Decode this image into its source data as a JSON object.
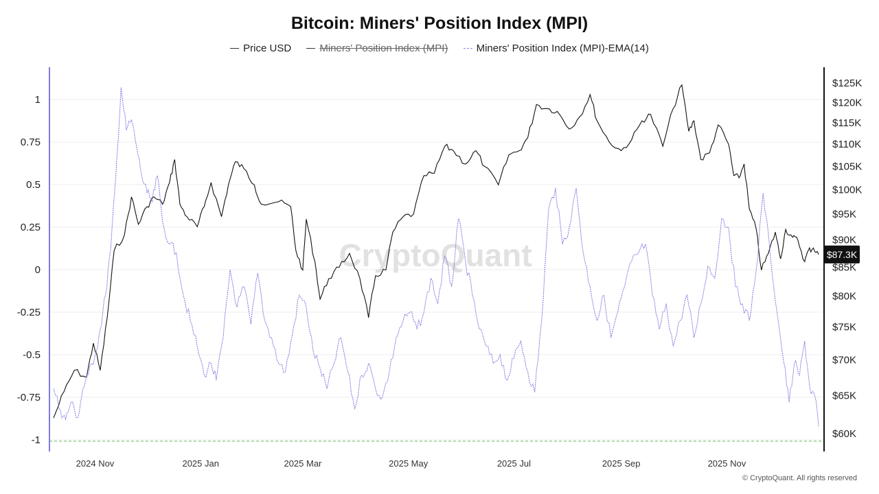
{
  "chart_data": {
    "type": "line",
    "title": "Bitcoin: Miners' Position Index (MPI)",
    "legend": [
      {
        "name": "Price USD",
        "hidden": false,
        "style": "solid"
      },
      {
        "name": "Miners' Position Index (MPI)",
        "hidden": true,
        "style": "solid"
      },
      {
        "name": "Miners' Position Index (MPI)-EMA(14)",
        "hidden": false,
        "style": "dashed"
      }
    ],
    "x_range": [
      "2024-10-08",
      "2025-12-24"
    ],
    "x_ticks": [
      {
        "date": "2024-11-01",
        "label": "2024 Nov"
      },
      {
        "date": "2025-01-01",
        "label": "2025 Jan"
      },
      {
        "date": "2025-03-01",
        "label": "2025 Mar"
      },
      {
        "date": "2025-05-01",
        "label": "2025 May"
      },
      {
        "date": "2025-07-01",
        "label": "2025 Jul"
      },
      {
        "date": "2025-09-01",
        "label": "2025 Sep"
      },
      {
        "date": "2025-11-01",
        "label": "2025 Nov"
      }
    ],
    "left_axis": {
      "ylim": [
        -1.05,
        1.12
      ],
      "ticks": [
        {
          "v": 1,
          "label": "1"
        },
        {
          "v": 0.75,
          "label": "0.75"
        },
        {
          "v": 0.5,
          "label": "0.5"
        },
        {
          "v": 0.25,
          "label": "0.25"
        },
        {
          "v": 0,
          "label": "0"
        },
        {
          "v": -0.25,
          "label": "-0.25"
        },
        {
          "v": -0.5,
          "label": "-0.5"
        },
        {
          "v": -0.75,
          "label": "-0.75"
        },
        {
          "v": -1,
          "label": "-1"
        }
      ]
    },
    "right_axis": {
      "scale": "log",
      "ticks": [
        {
          "v": 125000,
          "label": "$125K"
        },
        {
          "v": 120000,
          "label": "$120K"
        },
        {
          "v": 115000,
          "label": "$115K"
        },
        {
          "v": 110000,
          "label": "$110K"
        },
        {
          "v": 105000,
          "label": "$105K"
        },
        {
          "v": 100000,
          "label": "$100K"
        },
        {
          "v": 95000,
          "label": "$95K"
        },
        {
          "v": 90000,
          "label": "$90K"
        },
        {
          "v": 85000,
          "label": "$85K"
        },
        {
          "v": 80000,
          "label": "$80K"
        },
        {
          "v": 75000,
          "label": "$75K"
        },
        {
          "v": 70000,
          "label": "$70K"
        },
        {
          "v": 65000,
          "label": "$65K"
        },
        {
          "v": 60000,
          "label": "$60K"
        }
      ]
    },
    "reference_line": {
      "value": -1.0,
      "axis": "left",
      "style": "dashed",
      "color": "#5cb85c"
    },
    "current_price_label": "$87.3K",
    "series": [
      {
        "name": "Price USD",
        "axis": "right",
        "color": "#111111",
        "points": [
          [
            "2024-10-08",
            62000
          ],
          [
            "2024-10-14",
            65500
          ],
          [
            "2024-10-20",
            68500
          ],
          [
            "2024-10-27",
            67500
          ],
          [
            "2024-10-31",
            72500
          ],
          [
            "2024-11-04",
            68500
          ],
          [
            "2024-11-08",
            76500
          ],
          [
            "2024-11-12",
            88000
          ],
          [
            "2024-11-18",
            91000
          ],
          [
            "2024-11-22",
            98500
          ],
          [
            "2024-11-26",
            93000
          ],
          [
            "2024-12-01",
            96500
          ],
          [
            "2024-12-05",
            98500
          ],
          [
            "2024-12-10",
            97000
          ],
          [
            "2024-12-14",
            101500
          ],
          [
            "2024-12-17",
            106500
          ],
          [
            "2024-12-20",
            97000
          ],
          [
            "2024-12-24",
            94500
          ],
          [
            "2024-12-30",
            92500
          ],
          [
            "2025-01-03",
            96500
          ],
          [
            "2025-01-07",
            101500
          ],
          [
            "2025-01-13",
            94500
          ],
          [
            "2025-01-17",
            101000
          ],
          [
            "2025-01-21",
            106000
          ],
          [
            "2025-01-26",
            104500
          ],
          [
            "2025-02-01",
            101000
          ],
          [
            "2025-02-05",
            97000
          ],
          [
            "2025-02-15",
            97500
          ],
          [
            "2025-02-22",
            96500
          ],
          [
            "2025-02-25",
            88000
          ],
          [
            "2025-03-01",
            84500
          ],
          [
            "2025-03-03",
            94000
          ],
          [
            "2025-03-08",
            86000
          ],
          [
            "2025-03-11",
            79500
          ],
          [
            "2025-03-16",
            83000
          ],
          [
            "2025-03-22",
            85000
          ],
          [
            "2025-03-28",
            87500
          ],
          [
            "2025-04-03",
            83000
          ],
          [
            "2025-04-08",
            76500
          ],
          [
            "2025-04-12",
            83500
          ],
          [
            "2025-04-18",
            84500
          ],
          [
            "2025-04-22",
            91500
          ],
          [
            "2025-04-28",
            94500
          ],
          [
            "2025-05-04",
            95000
          ],
          [
            "2025-05-10",
            103000
          ],
          [
            "2025-05-16",
            103500
          ],
          [
            "2025-05-22",
            109500
          ],
          [
            "2025-05-27",
            108500
          ],
          [
            "2025-06-03",
            105500
          ],
          [
            "2025-06-09",
            108500
          ],
          [
            "2025-06-14",
            105000
          ],
          [
            "2025-06-22",
            101000
          ],
          [
            "2025-06-28",
            107500
          ],
          [
            "2025-07-04",
            108500
          ],
          [
            "2025-07-09",
            111500
          ],
          [
            "2025-07-14",
            119500
          ],
          [
            "2025-07-20",
            118500
          ],
          [
            "2025-07-26",
            117800
          ],
          [
            "2025-08-02",
            113500
          ],
          [
            "2025-08-08",
            116500
          ],
          [
            "2025-08-14",
            122000
          ],
          [
            "2025-08-18",
            115500
          ],
          [
            "2025-08-25",
            110500
          ],
          [
            "2025-09-01",
            108500
          ],
          [
            "2025-09-07",
            111000
          ],
          [
            "2025-09-13",
            115500
          ],
          [
            "2025-09-18",
            117000
          ],
          [
            "2025-09-25",
            109500
          ],
          [
            "2025-10-01",
            118500
          ],
          [
            "2025-10-06",
            124500
          ],
          [
            "2025-10-10",
            113000
          ],
          [
            "2025-10-13",
            115500
          ],
          [
            "2025-10-17",
            106500
          ],
          [
            "2025-10-22",
            108000
          ],
          [
            "2025-10-27",
            114500
          ],
          [
            "2025-11-02",
            110000
          ],
          [
            "2025-11-05",
            103000
          ],
          [
            "2025-11-08",
            102500
          ],
          [
            "2025-11-11",
            105500
          ],
          [
            "2025-11-14",
            96000
          ],
          [
            "2025-11-18",
            92000
          ],
          [
            "2025-11-21",
            84500
          ],
          [
            "2025-11-25",
            87500
          ],
          [
            "2025-11-29",
            91500
          ],
          [
            "2025-12-02",
            86500
          ],
          [
            "2025-12-05",
            92000
          ],
          [
            "2025-12-09",
            90500
          ],
          [
            "2025-12-12",
            90000
          ],
          [
            "2025-12-16",
            86000
          ],
          [
            "2025-12-18",
            88000
          ],
          [
            "2025-12-21",
            88500
          ],
          [
            "2025-12-24",
            87300
          ]
        ]
      },
      {
        "name": "Miners' Position Index (MPI)-EMA(14)",
        "axis": "left",
        "color": "#7f78e0",
        "points": [
          [
            "2024-10-08",
            -0.7
          ],
          [
            "2024-10-12",
            -0.83
          ],
          [
            "2024-10-15",
            -0.88
          ],
          [
            "2024-10-18",
            -0.78
          ],
          [
            "2024-10-22",
            -0.87
          ],
          [
            "2024-10-25",
            -0.7
          ],
          [
            "2024-10-28",
            -0.62
          ],
          [
            "2024-11-01",
            -0.5
          ],
          [
            "2024-11-04",
            -0.35
          ],
          [
            "2024-11-07",
            -0.15
          ],
          [
            "2024-11-10",
            0.12
          ],
          [
            "2024-11-13",
            0.55
          ],
          [
            "2024-11-16",
            1.07
          ],
          [
            "2024-11-19",
            0.82
          ],
          [
            "2024-11-22",
            0.88
          ],
          [
            "2024-11-25",
            0.72
          ],
          [
            "2024-11-28",
            0.55
          ],
          [
            "2024-12-01",
            0.45
          ],
          [
            "2024-12-04",
            0.4
          ],
          [
            "2024-12-07",
            0.55
          ],
          [
            "2024-12-10",
            0.28
          ],
          [
            "2024-12-14",
            0.15
          ],
          [
            "2024-12-18",
            0.1
          ],
          [
            "2024-12-22",
            -0.15
          ],
          [
            "2024-12-26",
            -0.3
          ],
          [
            "2024-12-30",
            -0.45
          ],
          [
            "2025-01-03",
            -0.62
          ],
          [
            "2025-01-07",
            -0.55
          ],
          [
            "2025-01-10",
            -0.65
          ],
          [
            "2025-01-14",
            -0.4
          ],
          [
            "2025-01-18",
            0.0
          ],
          [
            "2025-01-22",
            -0.22
          ],
          [
            "2025-01-26",
            -0.1
          ],
          [
            "2025-01-30",
            -0.32
          ],
          [
            "2025-02-03",
            -0.02
          ],
          [
            "2025-02-07",
            -0.3
          ],
          [
            "2025-02-11",
            -0.4
          ],
          [
            "2025-02-15",
            -0.55
          ],
          [
            "2025-02-19",
            -0.6
          ],
          [
            "2025-02-23",
            -0.38
          ],
          [
            "2025-02-27",
            -0.15
          ],
          [
            "2025-03-03",
            -0.22
          ],
          [
            "2025-03-07",
            -0.48
          ],
          [
            "2025-03-11",
            -0.58
          ],
          [
            "2025-03-15",
            -0.7
          ],
          [
            "2025-03-19",
            -0.55
          ],
          [
            "2025-03-23",
            -0.4
          ],
          [
            "2025-03-27",
            -0.6
          ],
          [
            "2025-03-31",
            -0.82
          ],
          [
            "2025-04-04",
            -0.62
          ],
          [
            "2025-04-08",
            -0.55
          ],
          [
            "2025-04-12",
            -0.7
          ],
          [
            "2025-04-16",
            -0.75
          ],
          [
            "2025-04-20",
            -0.6
          ],
          [
            "2025-04-24",
            -0.4
          ],
          [
            "2025-04-28",
            -0.3
          ],
          [
            "2025-05-02",
            -0.25
          ],
          [
            "2025-05-06",
            -0.35
          ],
          [
            "2025-05-10",
            -0.25
          ],
          [
            "2025-05-14",
            -0.05
          ],
          [
            "2025-05-18",
            -0.2
          ],
          [
            "2025-05-22",
            0.08
          ],
          [
            "2025-05-26",
            -0.1
          ],
          [
            "2025-05-30",
            0.3
          ],
          [
            "2025-06-03",
            0.05
          ],
          [
            "2025-06-07",
            -0.15
          ],
          [
            "2025-06-11",
            -0.35
          ],
          [
            "2025-06-15",
            -0.45
          ],
          [
            "2025-06-19",
            -0.55
          ],
          [
            "2025-06-23",
            -0.5
          ],
          [
            "2025-06-27",
            -0.65
          ],
          [
            "2025-07-01",
            -0.52
          ],
          [
            "2025-07-05",
            -0.42
          ],
          [
            "2025-07-09",
            -0.6
          ],
          [
            "2025-07-13",
            -0.72
          ],
          [
            "2025-07-17",
            -0.3
          ],
          [
            "2025-07-21",
            0.35
          ],
          [
            "2025-07-25",
            0.48
          ],
          [
            "2025-07-29",
            0.15
          ],
          [
            "2025-08-02",
            0.25
          ],
          [
            "2025-08-06",
            0.48
          ],
          [
            "2025-08-10",
            0.1
          ],
          [
            "2025-08-14",
            -0.1
          ],
          [
            "2025-08-18",
            -0.3
          ],
          [
            "2025-08-22",
            -0.15
          ],
          [
            "2025-08-26",
            -0.4
          ],
          [
            "2025-08-30",
            -0.25
          ],
          [
            "2025-09-03",
            -0.1
          ],
          [
            "2025-09-07",
            0.05
          ],
          [
            "2025-09-11",
            0.1
          ],
          [
            "2025-09-15",
            0.15
          ],
          [
            "2025-09-19",
            -0.15
          ],
          [
            "2025-09-23",
            -0.35
          ],
          [
            "2025-09-27",
            -0.2
          ],
          [
            "2025-10-01",
            -0.45
          ],
          [
            "2025-10-05",
            -0.3
          ],
          [
            "2025-10-09",
            -0.15
          ],
          [
            "2025-10-13",
            -0.4
          ],
          [
            "2025-10-17",
            -0.2
          ],
          [
            "2025-10-21",
            0.02
          ],
          [
            "2025-10-25",
            -0.05
          ],
          [
            "2025-10-29",
            0.3
          ],
          [
            "2025-11-02",
            0.25
          ],
          [
            "2025-11-06",
            -0.1
          ],
          [
            "2025-11-10",
            -0.2
          ],
          [
            "2025-11-14",
            -0.3
          ],
          [
            "2025-11-18",
            0.0
          ],
          [
            "2025-11-22",
            0.45
          ],
          [
            "2025-11-26",
            0.1
          ],
          [
            "2025-11-30",
            -0.25
          ],
          [
            "2025-12-04",
            -0.55
          ],
          [
            "2025-12-07",
            -0.78
          ],
          [
            "2025-12-10",
            -0.55
          ],
          [
            "2025-12-13",
            -0.62
          ],
          [
            "2025-12-16",
            -0.42
          ],
          [
            "2025-12-19",
            -0.7
          ],
          [
            "2025-12-22",
            -0.75
          ],
          [
            "2025-12-24",
            -0.92
          ]
        ]
      }
    ]
  },
  "watermark": "CryptoQuant",
  "copyright": "© CryptoQuant. All rights reserved",
  "colors": {
    "price_line": "#111111",
    "ema_line": "#7f78e0",
    "left_axis_line": "#7f78e0",
    "right_axis_line": "#111111",
    "reference_line": "#5cb85c",
    "grid": "#ececec"
  }
}
